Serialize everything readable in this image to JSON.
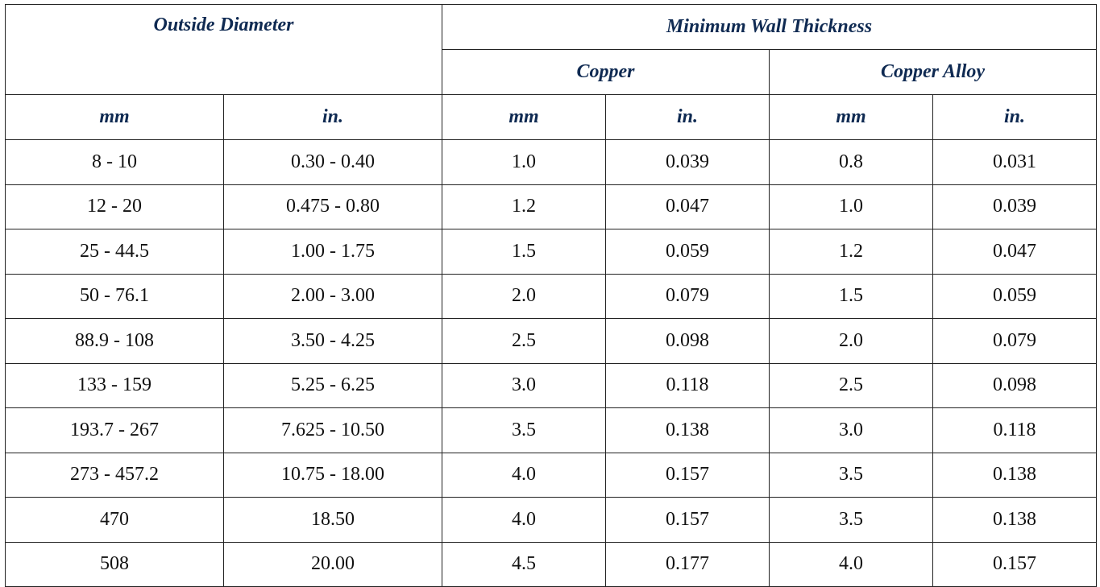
{
  "table": {
    "header": {
      "outside_diameter": "Outside Diameter",
      "min_wall_thickness": "Minimum Wall Thickness",
      "copper": "Copper",
      "copper_alloy": "Copper Alloy",
      "columns": [
        "mm",
        "in.",
        "mm",
        "in.",
        "mm",
        "in."
      ]
    },
    "rows": [
      [
        "8 - 10",
        "0.30 - 0.40",
        "1.0",
        "0.039",
        "0.8",
        "0.031"
      ],
      [
        "12 - 20",
        "0.475 - 0.80",
        "1.2",
        "0.047",
        "1.0",
        "0.039"
      ],
      [
        "25 - 44.5",
        "1.00 - 1.75",
        "1.5",
        "0.059",
        "1.2",
        "0.047"
      ],
      [
        "50 - 76.1",
        "2.00 - 3.00",
        "2.0",
        "0.079",
        "1.5",
        "0.059"
      ],
      [
        "88.9 - 108",
        "3.50 - 4.25",
        "2.5",
        "0.098",
        "2.0",
        "0.079"
      ],
      [
        "133 - 159",
        "5.25 - 6.25",
        "3.0",
        "0.118",
        "2.5",
        "0.098"
      ],
      [
        "193.7 - 267",
        "7.625 - 10.50",
        "3.5",
        "0.138",
        "3.0",
        "0.118"
      ],
      [
        "273 - 457.2",
        "10.75 - 18.00",
        "4.0",
        "0.157",
        "3.5",
        "0.138"
      ],
      [
        "470",
        "18.50",
        "4.0",
        "0.157",
        "3.5",
        "0.138"
      ],
      [
        "508",
        "20.00",
        "4.5",
        "0.177",
        "4.0",
        "0.157"
      ]
    ]
  }
}
